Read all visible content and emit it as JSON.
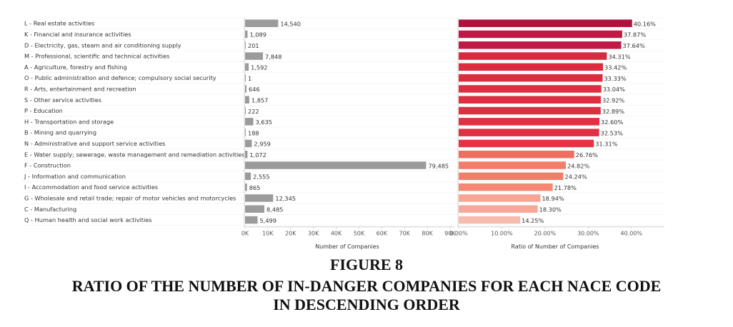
{
  "figure": {
    "number": "FIGURE 8",
    "title_line1": "RATIO OF THE NUMBER OF IN-DANGER COMPANIES FOR EACH NACE CODE",
    "title_line2": "IN DESCENDING ORDER"
  },
  "chart_data": [
    {
      "type": "bar",
      "orientation": "horizontal",
      "xlabel": "Number of Companies",
      "xlim": [
        0,
        90000
      ],
      "ticks": [
        "0K",
        "10K",
        "20K",
        "30K",
        "40K",
        "50K",
        "60K",
        "70K",
        "80K",
        "90K"
      ],
      "color": "#9b9b9b",
      "grid": false,
      "categories": [
        "L - Real estate activities",
        "K - Financial and insurance activities",
        "D - Electricity, gas, steam and air conditioning supply",
        "M - Professional, scientific and technical activities",
        "A - Agriculture, forestry and fishing",
        "O - Public administration and defence; compulsory social security",
        "R - Arts, entertainment and recreation",
        "S - Other service activities",
        "P - Education",
        "H - Transportation and storage",
        "B - Mining and quarrying",
        "N - Administrative and support service activities",
        "E - Water supply; sewerage, waste management and remediation activities",
        "F - Construction",
        "J - Information and communication",
        "I - Accommodation and food service activities",
        "G - Wholesale and retail trade; repair of motor vehicles and motorcycles",
        "C - Manufacturing",
        "Q - Human health and social work activities"
      ],
      "values": [
        14540,
        1089,
        201,
        7848,
        1592,
        1,
        646,
        1857,
        222,
        3635,
        188,
        2959,
        1072,
        79485,
        2555,
        865,
        12345,
        8485,
        5499
      ],
      "labels": [
        "14,540",
        "1,089",
        "201",
        "7,848",
        "1,592",
        "1",
        "646",
        "1,857",
        "222",
        "3,635",
        "188",
        "2,959",
        "1,072",
        "79,485",
        "2,555",
        "865",
        "12,345",
        "8,485",
        "5,499"
      ]
    },
    {
      "type": "bar",
      "orientation": "horizontal",
      "xlabel": "Ratio of Number of Companies",
      "xlim": [
        0,
        45
      ],
      "unit": "%",
      "ticks": [
        "0.00%",
        "10.00%",
        "20.00%",
        "30.00%",
        "40.00%"
      ],
      "tick_values": [
        0,
        10,
        20,
        30,
        40
      ],
      "grid": false,
      "values": [
        40.16,
        37.87,
        37.64,
        34.31,
        33.42,
        33.33,
        33.04,
        32.92,
        32.89,
        32.6,
        32.53,
        31.31,
        26.76,
        24.82,
        24.24,
        21.78,
        18.94,
        18.3,
        14.25
      ],
      "labels": [
        "40.16%",
        "37.87%",
        "37.64%",
        "34.31%",
        "33.42%",
        "33.33%",
        "33.04%",
        "32.92%",
        "32.89%",
        "32.60%",
        "32.53%",
        "31.31%",
        "26.76%",
        "24.82%",
        "24.24%",
        "21.78%",
        "18.94%",
        "18.30%",
        "14.25%"
      ],
      "colors": [
        "#b0123b",
        "#bf1a45",
        "#bf1a45",
        "#d9283f",
        "#dd2c40",
        "#dd2c40",
        "#df2e41",
        "#df2e41",
        "#df2e41",
        "#e13042",
        "#e13042",
        "#e33443",
        "#f06e60",
        "#f47c6a",
        "#f47c6a",
        "#f58872",
        "#f7a594",
        "#f7a898",
        "#f8bcae"
      ]
    }
  ]
}
